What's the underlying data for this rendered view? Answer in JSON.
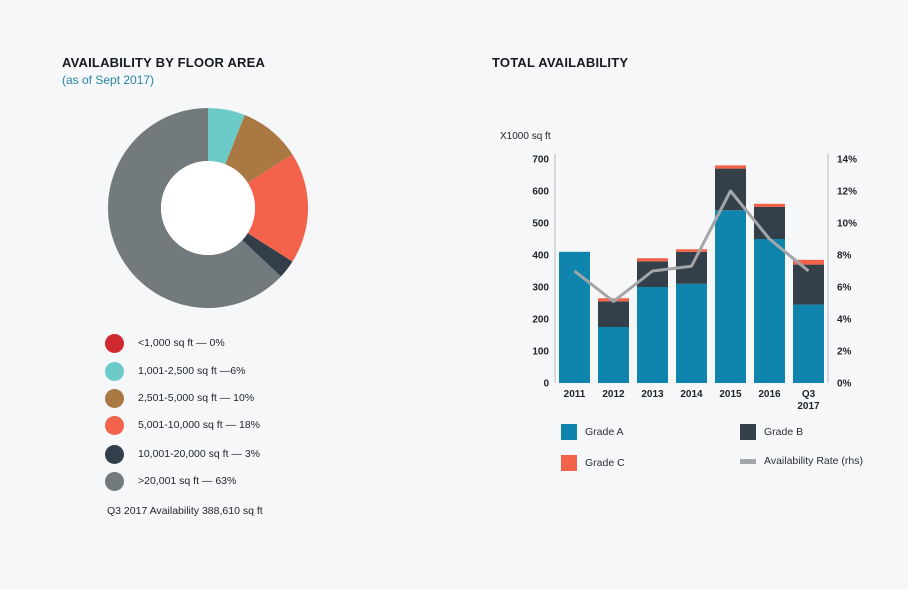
{
  "left_panel": {
    "title": "AVAILABILITY BY FLOOR AREA",
    "subtitle": "(as of Sept 2017)",
    "note": "Q3 2017 Availability 388,610 sq ft"
  },
  "right_panel": {
    "title": "TOTAL AVAILABILITY"
  },
  "chart_data": [
    {
      "type": "pie",
      "title": "AVAILABILITY BY FLOOR AREA",
      "subtitle": "(as of Sept 2017)",
      "donut": true,
      "slices": [
        {
          "label": "<1,000 sq ft — 0%",
          "value": 0,
          "color": "#cf2a30"
        },
        {
          "label": "1,001-2,500 sq ft —6%",
          "value": 6,
          "color": "#6ccbc8"
        },
        {
          "label": "2,501-5,000 sq ft — 10%",
          "value": 10,
          "color": "#a97843"
        },
        {
          "label": "5,001-10,000 sq ft — 18%",
          "value": 18,
          "color": "#f3624a"
        },
        {
          "label": "10,001-20,000 sq ft — 3%",
          "value": 3,
          "color": "#323e4a"
        },
        {
          "label": ">20,001 sq ft — 63%",
          "value": 63,
          "color": "#727a7e"
        }
      ]
    },
    {
      "type": "bar",
      "stacked": true,
      "title": "TOTAL AVAILABILITY",
      "ylabel": "X1000 sq ft",
      "ylim": [
        0,
        700
      ],
      "yticks": [
        "0",
        "100",
        "200",
        "300",
        "400",
        "500",
        "600",
        "700"
      ],
      "y2lim": [
        0,
        14
      ],
      "y2ticks": [
        "0%",
        "2%",
        "4%",
        "6%",
        "8%",
        "10%",
        "12%",
        "14%"
      ],
      "categories": [
        "2011",
        "2012",
        "2013",
        "2014",
        "2015",
        "2016",
        "Q3 2017"
      ],
      "series": [
        {
          "name": "Grade A",
          "color": "#0f84ad",
          "values": [
            410,
            175,
            300,
            310,
            540,
            450,
            245
          ]
        },
        {
          "name": "Grade B",
          "color": "#333f49",
          "values": [
            0,
            80,
            80,
            100,
            130,
            100,
            125
          ]
        },
        {
          "name": "Grade C",
          "color": "#f3624a",
          "values": [
            0,
            10,
            10,
            8,
            10,
            10,
            15
          ]
        }
      ],
      "line_series": {
        "name": "Availability Rate (rhs)",
        "color": "#a3a6a9",
        "axis": "right",
        "values": [
          7.0,
          5.1,
          7.0,
          7.3,
          12.0,
          9.0,
          7.0
        ]
      }
    }
  ]
}
